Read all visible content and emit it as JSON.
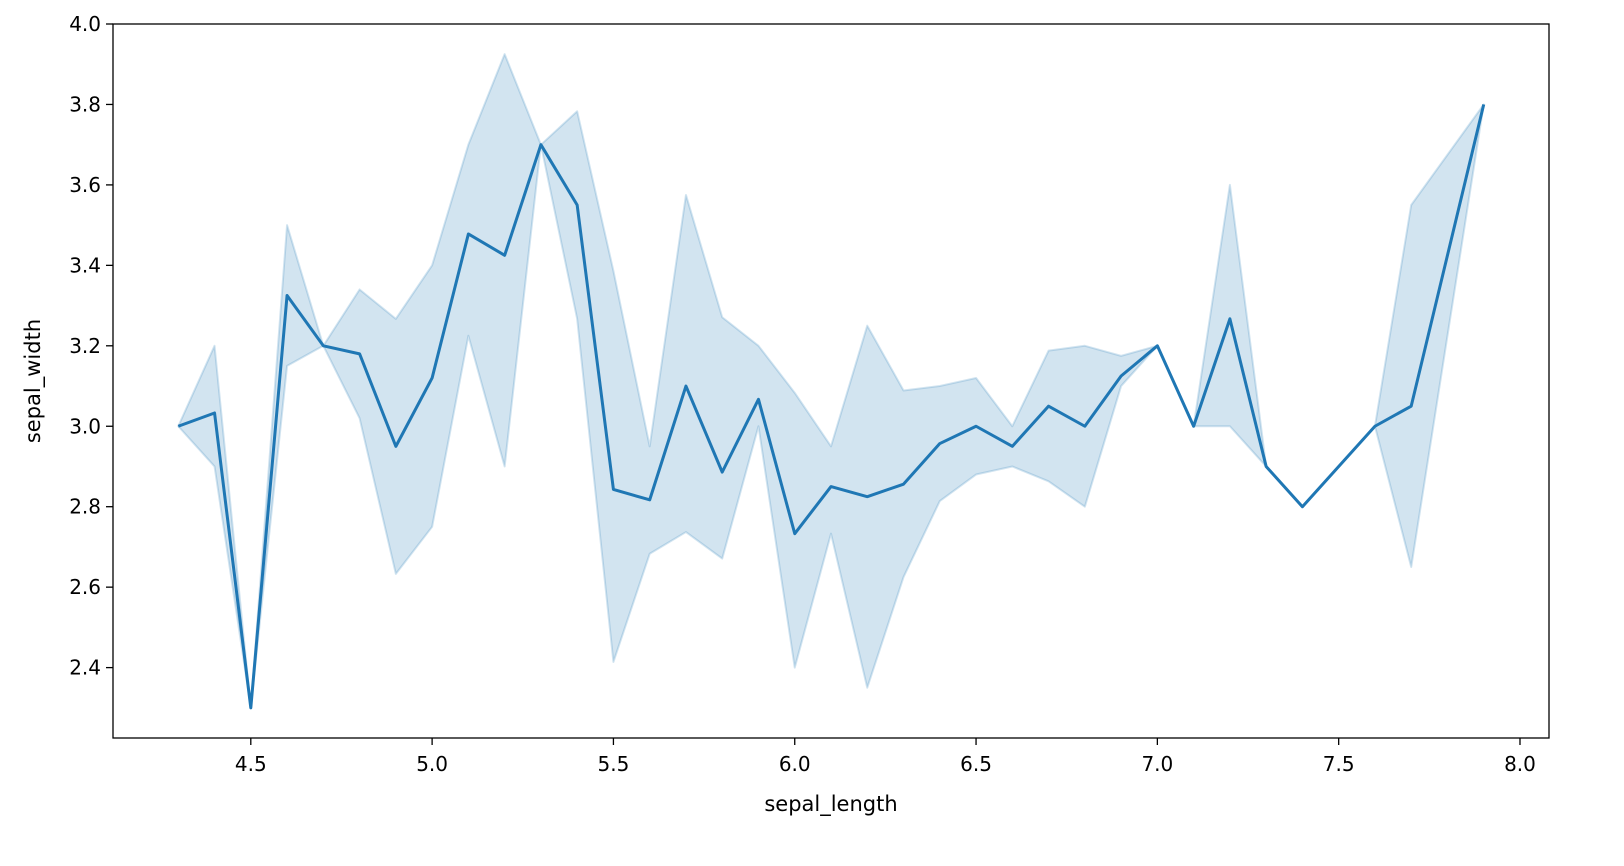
{
  "chart_data": {
    "type": "line",
    "xlabel": "sepal_length",
    "ylabel": "sepal_width",
    "xlim": [
      4.12,
      8.08
    ],
    "ylim": [
      2.225,
      4.0
    ],
    "xticks": [
      4.5,
      5.0,
      5.5,
      6.0,
      6.5,
      7.0,
      7.5,
      8.0
    ],
    "xtick_labels": [
      "4.5",
      "5.0",
      "5.5",
      "6.0",
      "6.5",
      "7.0",
      "7.5",
      "8.0"
    ],
    "yticks": [
      2.4,
      2.6,
      2.8,
      3.0,
      3.2,
      3.4,
      3.6,
      3.8,
      4.0
    ],
    "ytick_labels": [
      "2.4",
      "2.6",
      "2.8",
      "3.0",
      "3.2",
      "3.4",
      "3.6",
      "3.8",
      "4.0"
    ],
    "grid": false,
    "legend": null,
    "colors": {
      "line": "#1f77b4",
      "band": "#1f77b4",
      "axis": "#000000"
    },
    "series": [
      {
        "x": [
          4.3,
          4.4,
          4.5,
          4.6,
          4.7,
          4.8,
          4.9,
          5.0,
          5.1,
          5.2,
          5.3,
          5.4,
          5.5,
          5.6,
          5.7,
          5.8,
          5.9,
          6.0,
          6.1,
          6.2,
          6.3,
          6.4,
          6.5,
          6.6,
          6.7,
          6.8,
          6.9,
          7.0,
          7.1,
          7.2,
          7.3,
          7.4,
          7.6,
          7.7,
          7.9
        ],
        "y": [
          3.0,
          3.033,
          2.3,
          3.325,
          3.2,
          3.18,
          2.95,
          3.12,
          3.478,
          3.425,
          3.7,
          3.55,
          2.843,
          2.817,
          3.1,
          2.886,
          3.067,
          2.733,
          2.85,
          2.825,
          2.856,
          2.957,
          3.0,
          2.95,
          3.05,
          3.0,
          3.125,
          3.2,
          3.0,
          3.267,
          2.9,
          2.8,
          3.0,
          3.05,
          3.8
        ],
        "ci_low": [
          3.0,
          2.9,
          2.3,
          3.15,
          3.2,
          3.02,
          2.633,
          2.75,
          3.225,
          2.9,
          3.7,
          3.267,
          2.414,
          2.683,
          2.737,
          2.671,
          3.0,
          2.4,
          2.733,
          2.35,
          2.625,
          2.814,
          2.88,
          2.9,
          2.863,
          2.8,
          3.1,
          3.2,
          3.0,
          3.0,
          2.9,
          2.8,
          3.0,
          2.65,
          3.8
        ],
        "ci_high": [
          3.0,
          3.2,
          2.3,
          3.5,
          3.2,
          3.34,
          3.267,
          3.4,
          3.7,
          3.925,
          3.7,
          3.783,
          3.386,
          2.95,
          3.575,
          3.271,
          3.2,
          3.083,
          2.95,
          3.25,
          3.089,
          3.1,
          3.12,
          3.0,
          3.188,
          3.2,
          3.175,
          3.2,
          3.0,
          3.6,
          2.9,
          2.8,
          3.0,
          3.55,
          3.8
        ]
      }
    ]
  }
}
